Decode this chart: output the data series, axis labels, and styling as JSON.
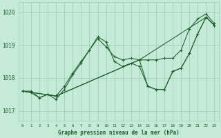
{
  "background_color": "#c6ead8",
  "grid_color": "#9ecfb4",
  "line_color": "#1a5e28",
  "marker_color": "#1a5e28",
  "xlabel": "Graphe pression niveau de la mer (hPa)",
  "xlim": [
    -0.5,
    23.5
  ],
  "ylim": [
    1016.7,
    1020.3
  ],
  "yticks": [
    1017,
    1018,
    1019,
    1020
  ],
  "xticks": [
    0,
    1,
    2,
    3,
    4,
    5,
    6,
    7,
    8,
    9,
    10,
    11,
    12,
    13,
    14,
    15,
    16,
    17,
    18,
    19,
    20,
    21,
    22,
    23
  ],
  "series": [
    {
      "x": [
        0,
        1,
        2,
        3,
        4,
        5,
        6,
        7,
        8,
        9,
        10,
        11,
        12,
        13,
        14,
        15,
        16,
        17,
        18,
        19,
        20,
        21,
        22,
        23
      ],
      "y": [
        1017.6,
        1017.6,
        1017.4,
        1017.5,
        1017.45,
        1017.75,
        1018.15,
        1018.5,
        1018.85,
        1019.2,
        1018.95,
        1018.65,
        1018.55,
        1018.6,
        1018.55,
        1018.55,
        1018.55,
        1018.6,
        1018.6,
        1018.85,
        1019.5,
        1019.8,
        1019.95,
        1019.65
      ]
    },
    {
      "x": [
        0,
        1,
        2,
        3,
        4,
        5,
        6,
        7,
        8,
        9,
        10,
        11,
        12,
        13,
        14,
        15,
        16,
        17,
        18,
        19,
        20,
        21,
        22,
        23
      ],
      "y": [
        1017.6,
        1017.55,
        1017.4,
        1017.5,
        1017.35,
        1017.65,
        1018.1,
        1018.45,
        1018.85,
        1019.25,
        1019.1,
        1018.5,
        1018.35,
        1018.45,
        1018.35,
        1017.75,
        1017.65,
        1017.65,
        1018.2,
        1018.3,
        1018.75,
        1019.35,
        1019.85,
        1019.6
      ]
    },
    {
      "x": [
        0,
        4,
        14,
        15,
        16,
        17,
        18,
        19,
        20,
        21,
        22,
        23
      ],
      "y": [
        1017.6,
        1017.45,
        1018.55,
        1017.75,
        1017.65,
        1017.65,
        1018.2,
        1018.3,
        1018.75,
        1019.35,
        1019.85,
        1019.6
      ]
    },
    {
      "x": [
        0,
        4,
        14,
        22,
        23
      ],
      "y": [
        1017.6,
        1017.45,
        1018.55,
        1019.85,
        1019.6
      ]
    }
  ]
}
